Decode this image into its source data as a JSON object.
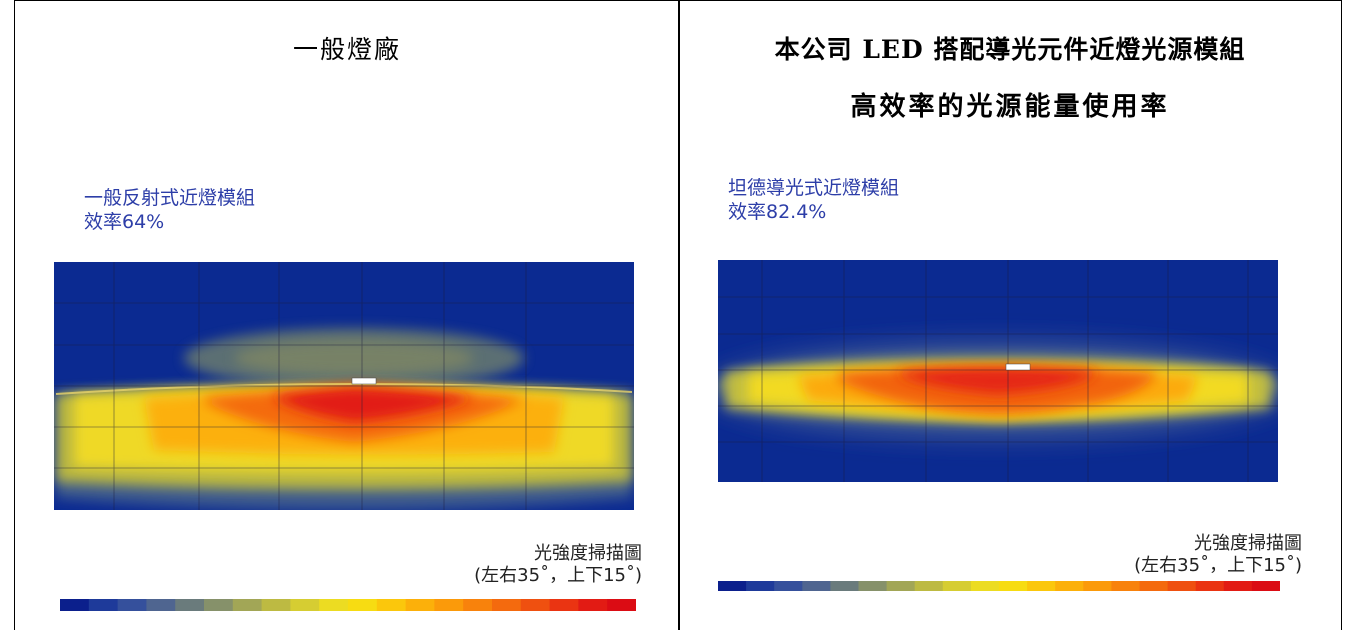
{
  "left": {
    "title": "一般燈廠",
    "module_name": "一般反射式近燈模組",
    "efficiency": "效率64%",
    "caption_title": "光強度掃描圖",
    "caption_range": "(左右35˚，上下15˚)"
  },
  "right": {
    "title_line1": "本公司 LED 搭配導光元件近燈光源模組",
    "title_line2": "高效率的光源能量使用率",
    "module_name": "坦德導光式近燈模組",
    "efficiency": "效率82.4%",
    "caption_title": "光強度掃描圖",
    "caption_range": "(左右35˚，上下15˚)"
  },
  "colors": {
    "background_blue": "#0b2a91",
    "module_text": "#2d3ea8",
    "scale": [
      "#0b1f8c",
      "#1e3a9a",
      "#35509c",
      "#4f6590",
      "#6a7b7c",
      "#86916a",
      "#a2a656",
      "#bdba42",
      "#d6cd32",
      "#ecdc22",
      "#f7dc12",
      "#fbc70c",
      "#fcb00a",
      "#fb9a0a",
      "#f8820c",
      "#f46a0e",
      "#ef5010",
      "#ea3412",
      "#e21b14",
      "#db0c14"
    ]
  }
}
